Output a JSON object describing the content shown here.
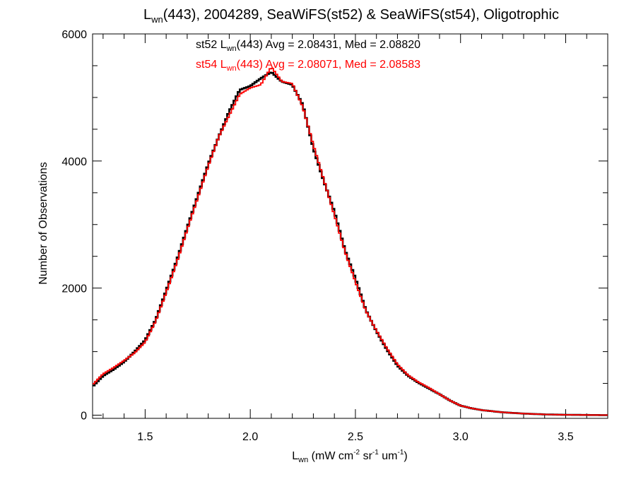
{
  "chart_data": {
    "type": "line",
    "style": "histogram-step",
    "title": {
      "pre": "L",
      "sub": "wn",
      "post": "(443), 2004289, SeaWiFS(st52) & SeaWiFS(st54), Oligotrophic"
    },
    "xlabel": {
      "a": "L",
      "a_sub": "wn",
      "b": " (mW cm",
      "b_sup": "-2",
      "c": " sr",
      "c_sup": "-1",
      "d": " um",
      "d_sup": "-1",
      "e": ")"
    },
    "ylabel": "Number of Observations",
    "xlim": [
      1.25,
      3.7
    ],
    "ylim": [
      -50,
      6000
    ],
    "x_ticks": [
      1.5,
      2.0,
      2.5,
      3.0,
      3.5
    ],
    "x_tick_labels": [
      "1.5",
      "2.0",
      "2.5",
      "3.0",
      "3.5"
    ],
    "y_ticks": [
      0,
      2000,
      4000,
      6000
    ],
    "y_tick_labels": [
      "0",
      "2000",
      "4000",
      "6000"
    ],
    "y_minor_step": 500,
    "x_minor_step": 0.1,
    "grid": false,
    "series": [
      {
        "id": "st52",
        "color": "#000000",
        "x": [
          1.25,
          1.3,
          1.35,
          1.4,
          1.45,
          1.5,
          1.55,
          1.6,
          1.65,
          1.7,
          1.75,
          1.8,
          1.85,
          1.9,
          1.95,
          2.0,
          2.05,
          2.1,
          2.15,
          2.2,
          2.25,
          2.3,
          2.35,
          2.4,
          2.45,
          2.5,
          2.55,
          2.6,
          2.65,
          2.7,
          2.75,
          2.8,
          2.85,
          2.9,
          2.95,
          3.0,
          3.05,
          3.1,
          3.2,
          3.3,
          3.4,
          3.5,
          3.6,
          3.7
        ],
        "values": [
          450,
          620,
          720,
          840,
          1000,
          1180,
          1500,
          1960,
          2430,
          2950,
          3450,
          3950,
          4380,
          4780,
          5120,
          5180,
          5300,
          5400,
          5250,
          5200,
          4880,
          4200,
          3680,
          3200,
          2600,
          2150,
          1650,
          1320,
          1030,
          780,
          620,
          510,
          420,
          330,
          230,
          150,
          110,
          80,
          45,
          25,
          12,
          6,
          3,
          1
        ]
      },
      {
        "id": "st54",
        "color": "#ff0000",
        "x": [
          1.25,
          1.3,
          1.35,
          1.4,
          1.45,
          1.5,
          1.55,
          1.6,
          1.65,
          1.7,
          1.75,
          1.8,
          1.85,
          1.9,
          1.95,
          2.0,
          2.05,
          2.1,
          2.15,
          2.2,
          2.25,
          2.3,
          2.35,
          2.4,
          2.45,
          2.5,
          2.55,
          2.6,
          2.65,
          2.7,
          2.75,
          2.8,
          2.85,
          2.9,
          2.95,
          3.0,
          3.05,
          3.1,
          3.2,
          3.3,
          3.4,
          3.5,
          3.6,
          3.7
        ],
        "values": [
          480,
          650,
          750,
          860,
          980,
          1150,
          1480,
          1930,
          2400,
          2920,
          3420,
          3920,
          4380,
          4720,
          5050,
          5150,
          5200,
          5480,
          5250,
          5220,
          4850,
          4250,
          3700,
          3150,
          2580,
          2100,
          1640,
          1330,
          1050,
          800,
          630,
          520,
          430,
          330,
          230,
          150,
          110,
          80,
          45,
          25,
          12,
          6,
          3,
          1
        ]
      }
    ],
    "annotations": [
      {
        "id": "st52",
        "color": "#000000",
        "pre": "st52 L",
        "sub": "wn",
        "post": "(443) Avg = 2.08431, Med = 2.08820"
      },
      {
        "id": "st54",
        "color": "#ff0000",
        "pre": "st54 L",
        "sub": "wn",
        "post": "(443) Avg = 2.08071, Med = 2.08583"
      }
    ]
  }
}
